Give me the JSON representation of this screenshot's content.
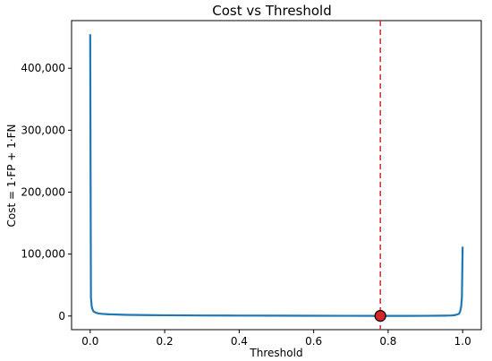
{
  "chart_data": {
    "type": "line",
    "title": "Cost vs Threshold",
    "xlabel": "Threshold",
    "ylabel": "Cost = 1·FP + 1·FN",
    "xlim": [
      -0.05,
      1.05
    ],
    "ylim": [
      -22000,
      477000
    ],
    "x_ticks": [
      0.0,
      0.2,
      0.4,
      0.6,
      0.8,
      1.0
    ],
    "x_tick_labels": [
      "0.0",
      "0.2",
      "0.4",
      "0.6",
      "0.8",
      "1.0"
    ],
    "y_ticks": [
      0,
      100000,
      200000,
      300000,
      400000
    ],
    "y_tick_labels": [
      "0",
      "100,000",
      "200,000",
      "300,000",
      "400,000"
    ],
    "grid": false,
    "series": [
      {
        "color": "#1f77b4",
        "x": [
          0.0,
          0.002,
          0.004,
          0.006,
          0.008,
          0.01,
          0.015,
          0.02,
          0.03,
          0.05,
          0.08,
          0.1,
          0.15,
          0.2,
          0.3,
          0.4,
          0.5,
          0.6,
          0.7,
          0.78,
          0.85,
          0.9,
          0.95,
          0.97,
          0.98,
          0.99,
          0.993,
          0.996,
          0.998,
          1.0
        ],
        "y": [
          455000,
          30000,
          16000,
          11000,
          8500,
          7000,
          5500,
          4500,
          3600,
          2800,
          2200,
          1900,
          1500,
          1200,
          900,
          700,
          550,
          420,
          330,
          280,
          290,
          350,
          600,
          900,
          1500,
          3500,
          7000,
          15000,
          30000,
          112000
        ]
      }
    ],
    "vertical_line": {
      "x": 0.779,
      "color": "#d62728",
      "style": "dashed"
    },
    "marker": {
      "x": 0.779,
      "y": 280,
      "fill": "#d62728",
      "edge": "#000000"
    }
  }
}
